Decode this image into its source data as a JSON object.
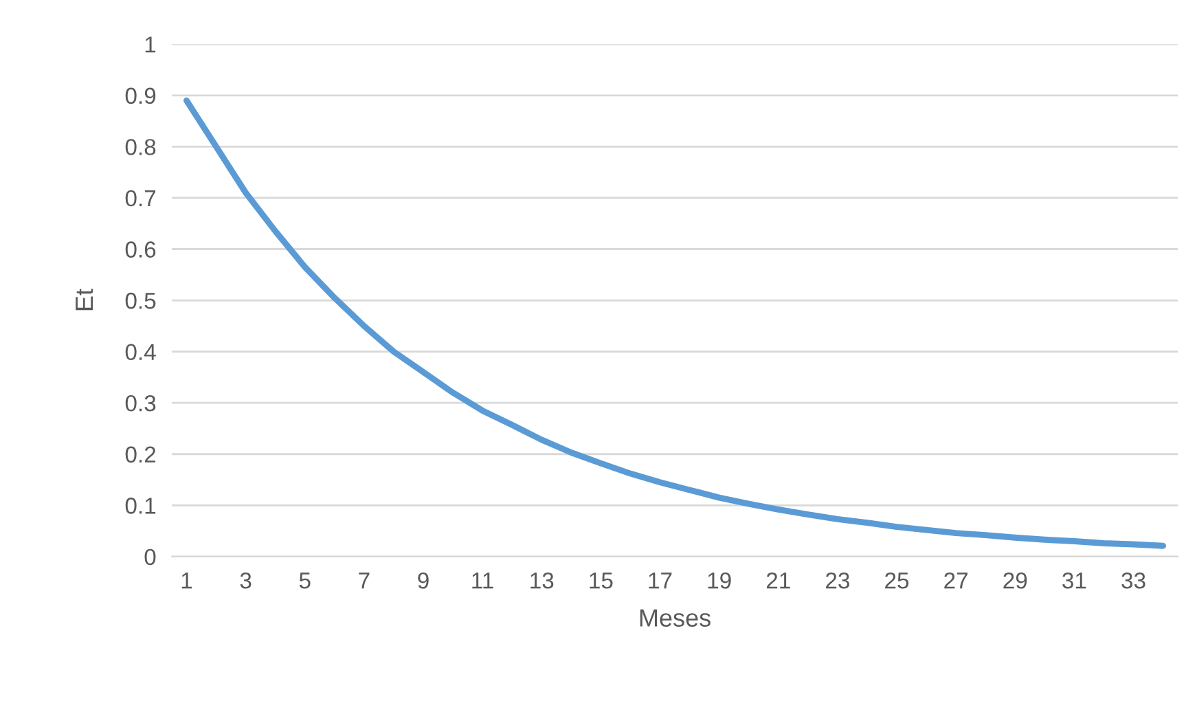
{
  "chart_data": {
    "type": "line",
    "xlabel": "Meses",
    "ylabel": "Et",
    "categories": [
      "1",
      null,
      "3",
      null,
      "5",
      null,
      "7",
      null,
      "9",
      null,
      "11",
      null,
      "13",
      null,
      "15",
      null,
      "17",
      null,
      "19",
      null,
      "21",
      null,
      "23",
      null,
      "25",
      null,
      "27",
      null,
      "29",
      null,
      "31",
      null,
      "33",
      null
    ],
    "series": [
      {
        "color": "#5b9bd5",
        "values": [
          0.89,
          0.8,
          0.71,
          0.635,
          0.565,
          0.505,
          0.45,
          0.4,
          0.36,
          0.32,
          0.285,
          0.257,
          0.228,
          0.203,
          0.182,
          0.162,
          0.145,
          0.13,
          0.115,
          0.103,
          0.092,
          0.082,
          0.073,
          0.066,
          0.058,
          0.052,
          0.046,
          0.042,
          0.037,
          0.033,
          0.03,
          0.026,
          0.024,
          0.021
        ]
      }
    ],
    "ylim": [
      0,
      1
    ],
    "yticks": [
      0,
      0.1,
      0.2,
      0.3,
      0.4,
      0.5,
      0.6,
      0.7,
      0.8,
      0.9,
      1
    ],
    "grid": "y",
    "marker": "none",
    "line_style": "solid",
    "legend": false
  }
}
